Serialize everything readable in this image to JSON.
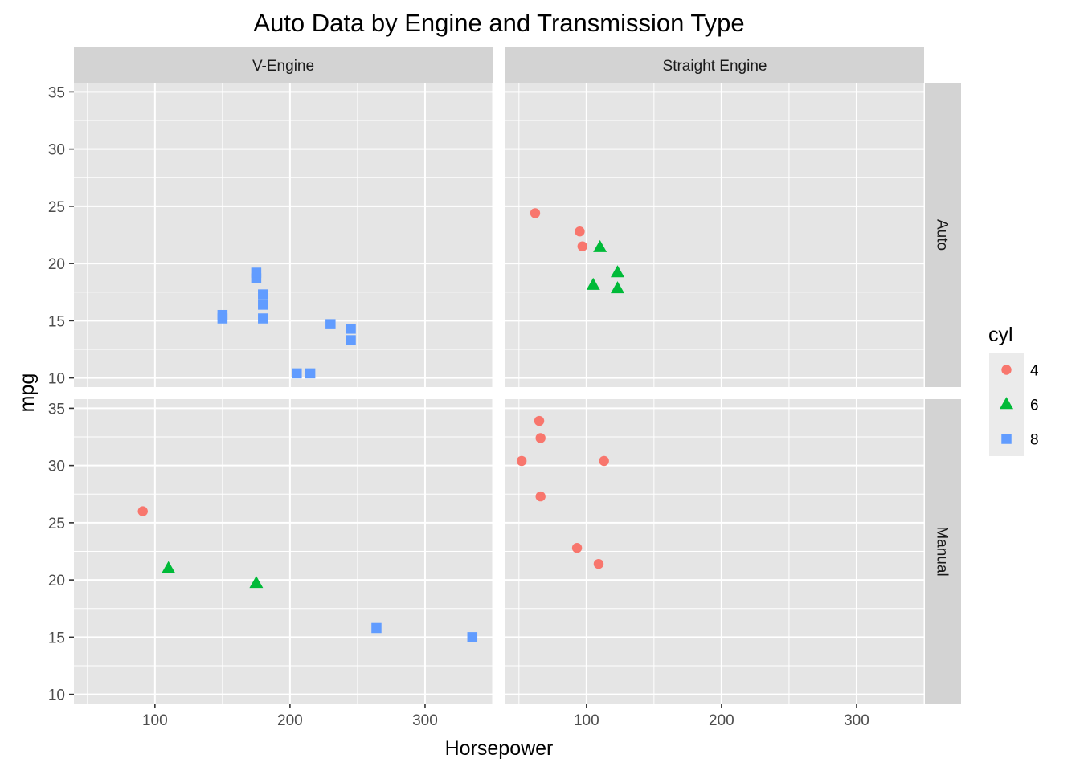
{
  "chart_data": {
    "type": "scatter",
    "title": "Auto Data by Engine and Transmission Type",
    "xlabel": "Horsepower",
    "ylabel": "mpg",
    "xlim": [
      40,
      350
    ],
    "ylim": [
      9.2,
      35.8
    ],
    "x_ticks": [
      100,
      200,
      300
    ],
    "y_ticks": [
      10,
      15,
      20,
      25,
      30,
      35
    ],
    "grid": true,
    "facet_columns": [
      "V-Engine",
      "Straight Engine"
    ],
    "facet_rows": [
      "Auto",
      "Manual"
    ],
    "legend": {
      "title": "cyl",
      "placement": "right",
      "entries": [
        {
          "label": "4",
          "shape": "circle",
          "color": "#F8766D"
        },
        {
          "label": "6",
          "shape": "triangle",
          "color": "#00BA38"
        },
        {
          "label": "8",
          "shape": "square",
          "color": "#619CFF"
        }
      ]
    },
    "panels": [
      {
        "column": "V-Engine",
        "row": "Auto",
        "points": [
          {
            "x": 150,
            "y": 15.5,
            "cyl": "8"
          },
          {
            "x": 150,
            "y": 15.2,
            "cyl": "8"
          },
          {
            "x": 175,
            "y": 18.7,
            "cyl": "8"
          },
          {
            "x": 175,
            "y": 19.2,
            "cyl": "8"
          },
          {
            "x": 180,
            "y": 16.4,
            "cyl": "8"
          },
          {
            "x": 180,
            "y": 17.3,
            "cyl": "8"
          },
          {
            "x": 180,
            "y": 15.2,
            "cyl": "8"
          },
          {
            "x": 205,
            "y": 10.4,
            "cyl": "8"
          },
          {
            "x": 215,
            "y": 10.4,
            "cyl": "8"
          },
          {
            "x": 230,
            "y": 14.7,
            "cyl": "8"
          },
          {
            "x": 245,
            "y": 14.3,
            "cyl": "8"
          },
          {
            "x": 245,
            "y": 13.3,
            "cyl": "8"
          }
        ]
      },
      {
        "column": "Straight Engine",
        "row": "Auto",
        "points": [
          {
            "x": 62,
            "y": 24.4,
            "cyl": "4"
          },
          {
            "x": 95,
            "y": 22.8,
            "cyl": "4"
          },
          {
            "x": 97,
            "y": 21.5,
            "cyl": "4"
          },
          {
            "x": 110,
            "y": 21.4,
            "cyl": "6"
          },
          {
            "x": 105,
            "y": 18.1,
            "cyl": "6"
          },
          {
            "x": 123,
            "y": 19.2,
            "cyl": "6"
          },
          {
            "x": 123,
            "y": 17.8,
            "cyl": "6"
          }
        ]
      },
      {
        "column": "V-Engine",
        "row": "Manual",
        "points": [
          {
            "x": 91,
            "y": 26.0,
            "cyl": "4"
          },
          {
            "x": 110,
            "y": 21.0,
            "cyl": "6"
          },
          {
            "x": 175,
            "y": 19.7,
            "cyl": "6"
          },
          {
            "x": 264,
            "y": 15.8,
            "cyl": "8"
          },
          {
            "x": 335,
            "y": 15.0,
            "cyl": "8"
          }
        ]
      },
      {
        "column": "Straight Engine",
        "row": "Manual",
        "points": [
          {
            "x": 66,
            "y": 32.4,
            "cyl": "4"
          },
          {
            "x": 52,
            "y": 30.4,
            "cyl": "4"
          },
          {
            "x": 65,
            "y": 33.9,
            "cyl": "4"
          },
          {
            "x": 66,
            "y": 27.3,
            "cyl": "4"
          },
          {
            "x": 113,
            "y": 30.4,
            "cyl": "4"
          },
          {
            "x": 93,
            "y": 22.8,
            "cyl": "4"
          },
          {
            "x": 109,
            "y": 21.4,
            "cyl": "4"
          }
        ]
      }
    ]
  }
}
